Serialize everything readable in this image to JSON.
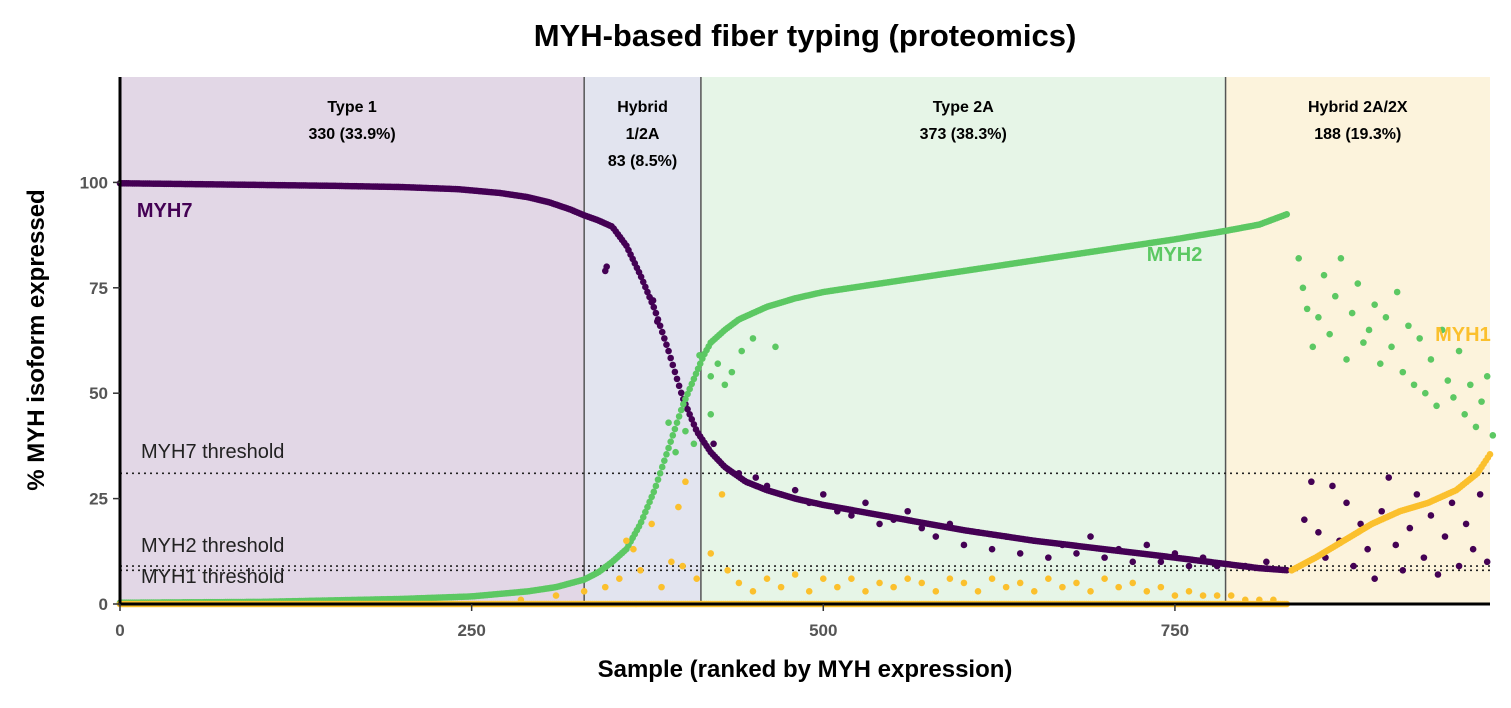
{
  "chart_data": {
    "type": "scatter",
    "title": "MYH-based fiber typing (proteomics)",
    "xlabel": "Sample (ranked by MYH expression)",
    "ylabel": "% MYH isoform expressed",
    "xlim": [
      0,
      974
    ],
    "ylim": [
      0,
      125
    ],
    "x_ticks": [
      0,
      250,
      500,
      750
    ],
    "y_ticks": [
      0,
      25,
      50,
      75,
      100
    ],
    "grid": false,
    "legend": "none",
    "regions": [
      {
        "name": "Type 1",
        "name_lines": [
          "Type 1"
        ],
        "count_label": "330 (33.9%)",
        "x_start": 0,
        "x_end": 330,
        "color": "#e2d7e6"
      },
      {
        "name": "Hybrid 1/2A",
        "name_lines": [
          "Hybrid",
          "1/2A"
        ],
        "count_label": "83 (8.5%)",
        "x_start": 330,
        "x_end": 413,
        "color": "#e2e4ef"
      },
      {
        "name": "Type 2A",
        "name_lines": [
          "Type 2A"
        ],
        "count_label": "373 (38.3%)",
        "x_start": 413,
        "x_end": 786,
        "color": "#e6f5e7"
      },
      {
        "name": "Hybrid 2A/2X",
        "name_lines": [
          "Hybrid 2A/2X"
        ],
        "count_label": "188 (19.3%)",
        "x_start": 786,
        "x_end": 974,
        "color": "#fcf3dc"
      }
    ],
    "thresholds": [
      {
        "name": "MYH7 threshold",
        "y": 31
      },
      {
        "name": "MYH2 threshold",
        "y": 9
      },
      {
        "name": "MYH1 threshold",
        "y": 8
      }
    ],
    "series": [
      {
        "name": "MYH7",
        "color": "#440154",
        "label_at": [
          12,
          93.5
        ],
        "segments": [
          {
            "x": [
              0,
              50,
              100,
              150,
              200,
              240,
              270,
              290,
              305,
              320,
              330,
              340,
              350,
              360,
              370,
              380,
              390,
              400,
              410,
              420,
              430,
              445,
              460,
              480,
              500,
              550,
              600,
              650,
              700,
              750,
              786,
              810,
              830
            ],
            "y": [
              99.8,
              99.6,
              99.4,
              99.2,
              98.9,
              98.4,
              97.5,
              96.5,
              95.3,
              93.6,
              92.2,
              91,
              89.5,
              85,
              78,
              70,
              60,
              49,
              41,
              36,
              32.5,
              29,
              27,
              25,
              23.5,
              20.5,
              17.5,
              15,
              13,
              11,
              9.5,
              8.5,
              8
            ]
          }
        ],
        "scatter": [
          [
            345,
            79
          ],
          [
            346,
            80
          ],
          [
            379,
            72
          ],
          [
            382,
            67
          ],
          [
            422,
            38
          ],
          [
            440,
            31
          ],
          [
            452,
            30
          ],
          [
            460,
            28
          ],
          [
            470,
            26
          ],
          [
            480,
            27
          ],
          [
            490,
            24
          ],
          [
            500,
            26
          ],
          [
            510,
            22
          ],
          [
            520,
            21
          ],
          [
            530,
            24
          ],
          [
            540,
            19
          ],
          [
            550,
            20
          ],
          [
            560,
            22
          ],
          [
            570,
            18
          ],
          [
            580,
            16
          ],
          [
            590,
            19
          ],
          [
            600,
            14
          ],
          [
            610,
            17
          ],
          [
            620,
            13
          ],
          [
            630,
            16
          ],
          [
            640,
            12
          ],
          [
            650,
            15
          ],
          [
            660,
            11
          ],
          [
            670,
            14
          ],
          [
            680,
            12
          ],
          [
            690,
            16
          ],
          [
            700,
            11
          ],
          [
            710,
            13
          ],
          [
            720,
            10
          ],
          [
            730,
            14
          ],
          [
            740,
            10
          ],
          [
            750,
            12
          ],
          [
            760,
            9
          ],
          [
            770,
            11
          ],
          [
            780,
            9
          ],
          [
            800,
            9
          ],
          [
            815,
            10
          ],
          [
            842,
            20
          ],
          [
            847,
            29
          ],
          [
            852,
            17
          ],
          [
            857,
            11
          ],
          [
            862,
            28
          ],
          [
            867,
            15
          ],
          [
            872,
            24
          ],
          [
            877,
            9
          ],
          [
            882,
            19
          ],
          [
            887,
            13
          ],
          [
            892,
            6
          ],
          [
            897,
            22
          ],
          [
            902,
            30
          ],
          [
            907,
            14
          ],
          [
            912,
            8
          ],
          [
            917,
            18
          ],
          [
            922,
            26
          ],
          [
            927,
            11
          ],
          [
            932,
            21
          ],
          [
            937,
            7
          ],
          [
            942,
            16
          ],
          [
            947,
            24
          ],
          [
            952,
            9
          ],
          [
            957,
            19
          ],
          [
            962,
            13
          ],
          [
            967,
            26
          ],
          [
            972,
            10
          ]
        ]
      },
      {
        "name": "MYH2",
        "color": "#5cc863",
        "label_at": [
          730,
          83
        ],
        "segments": [
          {
            "x": [
              0,
              100,
              200,
              250,
              290,
              310,
              330,
              340,
              350,
              360,
              370,
              380,
              390,
              400,
              410,
              415,
              420,
              430,
              440,
              450,
              460,
              480,
              500,
              550,
              600,
              650,
              700,
              750,
              786,
              810,
              830
            ],
            "y": [
              0.3,
              0.5,
              1.2,
              1.8,
              3,
              4,
              5.8,
              7.5,
              10,
              13,
              19,
              27,
              37,
              47,
              55,
              59,
              62,
              65,
              67.5,
              69,
              70.5,
              72.5,
              74,
              76.5,
              79,
              81.5,
              84,
              86.5,
              88.5,
              90,
              92.5
            ]
          }
        ],
        "scatter": [
          [
            390,
            43
          ],
          [
            395,
            36
          ],
          [
            402,
            41
          ],
          [
            408,
            38
          ],
          [
            412,
            59
          ],
          [
            420,
            54
          ],
          [
            425,
            57
          ],
          [
            435,
            55
          ],
          [
            442,
            60
          ],
          [
            450,
            63
          ],
          [
            466,
            61
          ],
          [
            420,
            45
          ],
          [
            430,
            52
          ],
          [
            838,
            82
          ],
          [
            841,
            75
          ],
          [
            844,
            70
          ],
          [
            848,
            61
          ],
          [
            852,
            68
          ],
          [
            856,
            78
          ],
          [
            860,
            64
          ],
          [
            864,
            73
          ],
          [
            868,
            82
          ],
          [
            872,
            58
          ],
          [
            876,
            69
          ],
          [
            880,
            76
          ],
          [
            884,
            62
          ],
          [
            888,
            65
          ],
          [
            892,
            71
          ],
          [
            896,
            57
          ],
          [
            900,
            68
          ],
          [
            904,
            61
          ],
          [
            908,
            74
          ],
          [
            912,
            55
          ],
          [
            916,
            66
          ],
          [
            920,
            52
          ],
          [
            924,
            63
          ],
          [
            928,
            50
          ],
          [
            932,
            58
          ],
          [
            936,
            47
          ],
          [
            940,
            65
          ],
          [
            944,
            53
          ],
          [
            948,
            49
          ],
          [
            952,
            60
          ],
          [
            956,
            45
          ],
          [
            960,
            52
          ],
          [
            964,
            42
          ],
          [
            968,
            48
          ],
          [
            972,
            54
          ],
          [
            976,
            40
          ]
        ]
      },
      {
        "name": "MYH1",
        "color": "#fbc02d",
        "label_at": [
          935,
          64
        ],
        "segments": [
          {
            "x": [
              0,
              200,
              330,
              413,
              600,
              786,
              830
            ],
            "y": [
              0,
              0,
              0,
              0,
              0,
              0,
              0
            ]
          },
          {
            "x": [
              833,
              850,
              870,
              890,
              910,
              930,
              950,
              965,
              975
            ],
            "y": [
              8,
              11,
              15,
              19,
              22,
              24,
              27,
              31,
              36
            ]
          }
        ],
        "scatter": [
          [
            285,
            1
          ],
          [
            310,
            2
          ],
          [
            330,
            3
          ],
          [
            345,
            4
          ],
          [
            355,
            6
          ],
          [
            360,
            15
          ],
          [
            365,
            13
          ],
          [
            370,
            8
          ],
          [
            378,
            19
          ],
          [
            385,
            4
          ],
          [
            392,
            10
          ],
          [
            397,
            23
          ],
          [
            400,
            9
          ],
          [
            402,
            29
          ],
          [
            410,
            6
          ],
          [
            420,
            12
          ],
          [
            428,
            26
          ],
          [
            432,
            8
          ],
          [
            440,
            5
          ],
          [
            450,
            3
          ],
          [
            460,
            6
          ],
          [
            470,
            4
          ],
          [
            480,
            7
          ],
          [
            490,
            3
          ],
          [
            500,
            6
          ],
          [
            510,
            4
          ],
          [
            520,
            6
          ],
          [
            530,
            3
          ],
          [
            540,
            5
          ],
          [
            550,
            4
          ],
          [
            560,
            6
          ],
          [
            570,
            5
          ],
          [
            580,
            3
          ],
          [
            590,
            6
          ],
          [
            600,
            5
          ],
          [
            610,
            3
          ],
          [
            620,
            6
          ],
          [
            630,
            4
          ],
          [
            640,
            5
          ],
          [
            650,
            3
          ],
          [
            660,
            6
          ],
          [
            670,
            4
          ],
          [
            680,
            5
          ],
          [
            690,
            3
          ],
          [
            700,
            6
          ],
          [
            710,
            4
          ],
          [
            720,
            5
          ],
          [
            730,
            3
          ],
          [
            740,
            4
          ],
          [
            750,
            2
          ],
          [
            760,
            3
          ],
          [
            770,
            2
          ],
          [
            780,
            2
          ],
          [
            790,
            2
          ],
          [
            800,
            1
          ],
          [
            810,
            1
          ],
          [
            820,
            1
          ]
        ]
      }
    ]
  }
}
